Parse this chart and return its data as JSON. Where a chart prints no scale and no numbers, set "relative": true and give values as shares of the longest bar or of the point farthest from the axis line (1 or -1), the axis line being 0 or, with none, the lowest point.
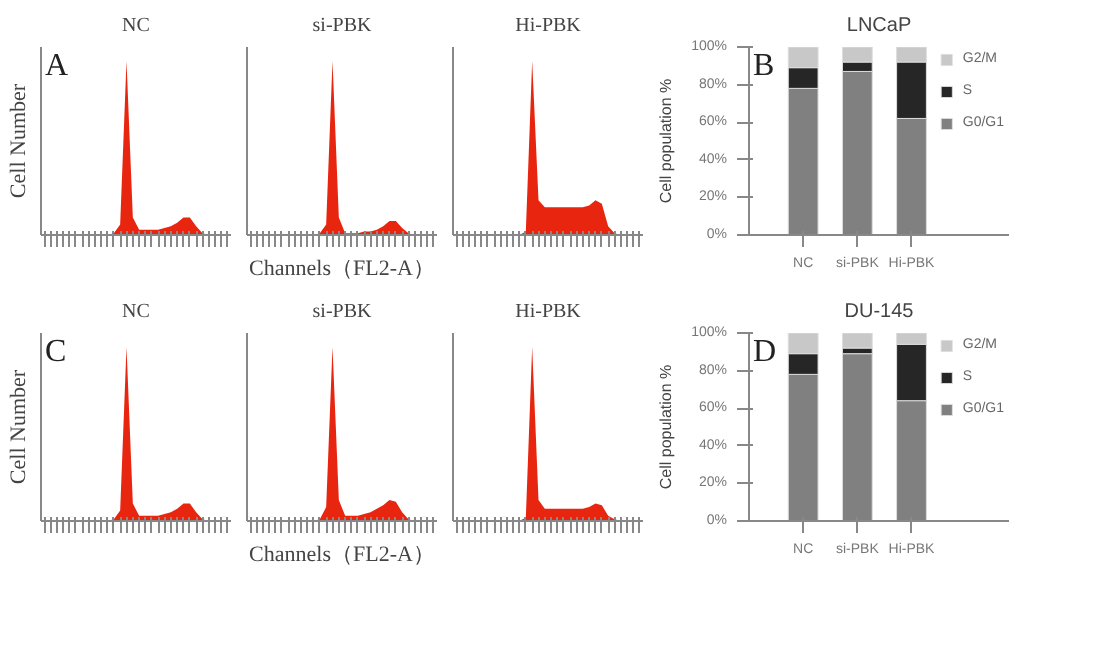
{
  "chart_data": [
    {
      "type": "area",
      "title": "NC",
      "ylabel": "Cell Number",
      "annotations": [
        "A"
      ],
      "relative": true,
      "categories": [
        null,
        null,
        null,
        null,
        null,
        null,
        null,
        null,
        null,
        null,
        null,
        null,
        null,
        null,
        null,
        null,
        null,
        null,
        null,
        null,
        null,
        null,
        null,
        null,
        null,
        null,
        null,
        null,
        null,
        null
      ],
      "series": [
        {
          "color": "#e8250f",
          "values": [
            0,
            0,
            0,
            0,
            0,
            0,
            0,
            0,
            0,
            0,
            0,
            0.01,
            0.06,
            1,
            0.1,
            0.03,
            0.03,
            0.03,
            0.03,
            0.04,
            0.05,
            0.07,
            0.1,
            0.1,
            0.05,
            0.01,
            0,
            0,
            0,
            0
          ]
        }
      ]
    },
    {
      "type": "area",
      "title": "si-PBK",
      "xlabel": "Channels（FL2-A）",
      "relative": true,
      "categories": [
        null,
        null,
        null,
        null,
        null,
        null,
        null,
        null,
        null,
        null,
        null,
        null,
        null,
        null,
        null,
        null,
        null,
        null,
        null,
        null,
        null,
        null,
        null,
        null,
        null,
        null,
        null,
        null,
        null,
        null
      ],
      "series": [
        {
          "color": "#e8250f",
          "values": [
            0,
            0,
            0,
            0,
            0,
            0,
            0,
            0,
            0,
            0,
            0,
            0.01,
            0.06,
            1,
            0.1,
            0.01,
            0.01,
            0.01,
            0.02,
            0.02,
            0.03,
            0.05,
            0.08,
            0.08,
            0.04,
            0.01,
            0,
            0,
            0,
            0
          ]
        }
      ]
    },
    {
      "type": "area",
      "title": "Hi-PBK",
      "relative": true,
      "categories": [
        null,
        null,
        null,
        null,
        null,
        null,
        null,
        null,
        null,
        null,
        null,
        null,
        null,
        null,
        null,
        null,
        null,
        null,
        null,
        null,
        null,
        null,
        null,
        null,
        null,
        null,
        null,
        null,
        null,
        null
      ],
      "series": [
        {
          "color": "#e8250f",
          "values": [
            0,
            0,
            0,
            0,
            0,
            0,
            0,
            0,
            0,
            0,
            0,
            0.02,
            1,
            0.2,
            0.16,
            0.16,
            0.16,
            0.16,
            0.16,
            0.16,
            0.16,
            0.17,
            0.2,
            0.18,
            0.05,
            0.01,
            0,
            0,
            0,
            0
          ]
        }
      ]
    },
    {
      "type": "bar",
      "stacked": true,
      "title": "LNCaP",
      "ylabel": "Cell population %",
      "annotations": [
        "B"
      ],
      "categories": [
        "NC",
        "si-PBK",
        "Hi-PBK"
      ],
      "ylim": [
        0,
        100
      ],
      "yticks": [
        {
          "value": 0,
          "label": "0%"
        },
        {
          "value": 20,
          "label": "20%"
        },
        {
          "value": 40,
          "label": "40%"
        },
        {
          "value": 60,
          "label": "60%"
        },
        {
          "value": 80,
          "label": "80%"
        },
        {
          "value": 100,
          "label": "100%"
        }
      ],
      "legend": "right",
      "series": [
        {
          "name": "G0/G1",
          "color": "#808080",
          "values": [
            78,
            87,
            62
          ]
        },
        {
          "name": "S",
          "color": "#262626",
          "values": [
            11,
            5,
            30
          ]
        },
        {
          "name": "G2/M",
          "color": "#c8c8c8",
          "values": [
            11,
            8,
            8
          ]
        }
      ]
    },
    {
      "type": "area",
      "title": "NC",
      "ylabel": "Cell Number",
      "annotations": [
        "C"
      ],
      "relative": true,
      "categories": [
        null,
        null,
        null,
        null,
        null,
        null,
        null,
        null,
        null,
        null,
        null,
        null,
        null,
        null,
        null,
        null,
        null,
        null,
        null,
        null,
        null,
        null,
        null,
        null,
        null,
        null,
        null,
        null,
        null,
        null
      ],
      "series": [
        {
          "color": "#e8250f",
          "values": [
            0,
            0,
            0,
            0,
            0,
            0,
            0,
            0,
            0,
            0,
            0,
            0.01,
            0.06,
            1,
            0.1,
            0.03,
            0.03,
            0.03,
            0.03,
            0.04,
            0.05,
            0.07,
            0.1,
            0.1,
            0.05,
            0.01,
            0,
            0,
            0,
            0
          ]
        }
      ]
    },
    {
      "type": "area",
      "title": "si-PBK",
      "xlabel": "Channels（FL2-A）",
      "relative": true,
      "categories": [
        null,
        null,
        null,
        null,
        null,
        null,
        null,
        null,
        null,
        null,
        null,
        null,
        null,
        null,
        null,
        null,
        null,
        null,
        null,
        null,
        null,
        null,
        null,
        null,
        null,
        null,
        null,
        null,
        null,
        null
      ],
      "series": [
        {
          "color": "#e8250f",
          "values": [
            0,
            0,
            0,
            0,
            0,
            0,
            0,
            0,
            0,
            0,
            0,
            0.01,
            0.08,
            1,
            0.12,
            0.03,
            0.03,
            0.03,
            0.04,
            0.05,
            0.07,
            0.09,
            0.12,
            0.11,
            0.05,
            0.01,
            0,
            0,
            0,
            0
          ]
        }
      ]
    },
    {
      "type": "area",
      "title": "Hi-PBK",
      "relative": true,
      "categories": [
        null,
        null,
        null,
        null,
        null,
        null,
        null,
        null,
        null,
        null,
        null,
        null,
        null,
        null,
        null,
        null,
        null,
        null,
        null,
        null,
        null,
        null,
        null,
        null,
        null,
        null,
        null,
        null,
        null,
        null
      ],
      "series": [
        {
          "color": "#e8250f",
          "values": [
            0,
            0,
            0,
            0,
            0,
            0,
            0,
            0,
            0,
            0,
            0,
            0.02,
            1,
            0.12,
            0.07,
            0.07,
            0.07,
            0.07,
            0.07,
            0.07,
            0.07,
            0.08,
            0.1,
            0.09,
            0.03,
            0.01,
            0,
            0,
            0,
            0
          ]
        }
      ]
    },
    {
      "type": "bar",
      "stacked": true,
      "title": "DU-145",
      "ylabel": "Cell population %",
      "annotations": [
        "D"
      ],
      "categories": [
        "NC",
        "si-PBK",
        "Hi-PBK"
      ],
      "ylim": [
        0,
        100
      ],
      "yticks": [
        {
          "value": 0,
          "label": "0%"
        },
        {
          "value": 20,
          "label": "20%"
        },
        {
          "value": 40,
          "label": "40%"
        },
        {
          "value": 60,
          "label": "60%"
        },
        {
          "value": 80,
          "label": "80%"
        },
        {
          "value": 100,
          "label": "100%"
        }
      ],
      "legend": "right",
      "series": [
        {
          "name": "G0/G1",
          "color": "#808080",
          "values": [
            78,
            89,
            64
          ]
        },
        {
          "name": "S",
          "color": "#262626",
          "values": [
            11,
            3,
            30
          ]
        },
        {
          "name": "G2/M",
          "color": "#c8c8c8",
          "values": [
            11,
            8,
            6
          ]
        }
      ]
    }
  ]
}
